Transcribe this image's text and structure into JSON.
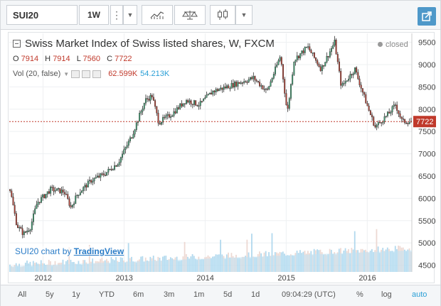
{
  "toolbar": {
    "symbol": "SUI20",
    "interval": "1W"
  },
  "legend": {
    "title": "Swiss Market Index of Swiss listed shares, W, FXCM",
    "o_label": "O",
    "o_value": "7914",
    "h_label": "H",
    "h_value": "7914",
    "l_label": "L",
    "l_value": "7560",
    "c_label": "C",
    "c_value": "7722",
    "vol_label": "Vol (20, false)",
    "vol_value": "62.599K",
    "vol_ma": "54.213K",
    "status": "closed"
  },
  "branding": {
    "prefix": "SUI20 chart by",
    "name": "TradingView"
  },
  "bottom": {
    "ranges": [
      "All",
      "5y",
      "1y",
      "YTD",
      "6m",
      "3m",
      "1m",
      "5d",
      "1d"
    ],
    "time": "09:04:29 (UTC)",
    "percent": "%",
    "log": "log",
    "auto": "auto"
  },
  "colors": {
    "up": "#3d9e71",
    "down": "#b23b2e",
    "accent": "#4e98c9",
    "volume": "#9fd0ea",
    "last": "#c0392b"
  },
  "chart_data": {
    "type": "candlestick",
    "title": "Swiss Market Index of Swiss listed shares, W, FXCM",
    "y_ticks": [
      4500,
      5000,
      5500,
      6000,
      6500,
      7000,
      7500,
      8000,
      8500,
      9000,
      9500
    ],
    "x_ticks": [
      "2012",
      "2013",
      "2014",
      "2015",
      "2016"
    ],
    "ylim": [
      4350,
      9700
    ],
    "last_price": 7722,
    "price_path": [
      [
        "2011-08",
        6200
      ],
      [
        "2011-09",
        5400
      ],
      [
        "2011-10",
        5200
      ],
      [
        "2011-11",
        5350
      ],
      [
        "2011-12",
        5900
      ],
      [
        "2012-02",
        6200
      ],
      [
        "2012-04",
        6150
      ],
      [
        "2012-05",
        5800
      ],
      [
        "2012-06",
        6100
      ],
      [
        "2012-08",
        6400
      ],
      [
        "2012-10",
        6550
      ],
      [
        "2012-12",
        6800
      ],
      [
        "2013-02",
        7400
      ],
      [
        "2013-04",
        8200
      ],
      [
        "2013-05",
        8300
      ],
      [
        "2013-06",
        7700
      ],
      [
        "2013-08",
        7900
      ],
      [
        "2013-10",
        8200
      ],
      [
        "2013-12",
        8100
      ],
      [
        "2014-02",
        8400
      ],
      [
        "2014-04",
        8500
      ],
      [
        "2014-06",
        8600
      ],
      [
        "2014-08",
        8700
      ],
      [
        "2014-10",
        8400
      ],
      [
        "2014-12",
        9200
      ],
      [
        "2015-01",
        7900
      ],
      [
        "2015-02",
        9100
      ],
      [
        "2015-04",
        9400
      ],
      [
        "2015-06",
        8900
      ],
      [
        "2015-08",
        9500
      ],
      [
        "2015-09",
        8500
      ],
      [
        "2015-11",
        8900
      ],
      [
        "2016-01",
        8000
      ],
      [
        "2016-02",
        7600
      ],
      [
        "2016-04",
        7900
      ],
      [
        "2016-05",
        8100
      ],
      [
        "2016-06",
        7722
      ]
    ]
  }
}
